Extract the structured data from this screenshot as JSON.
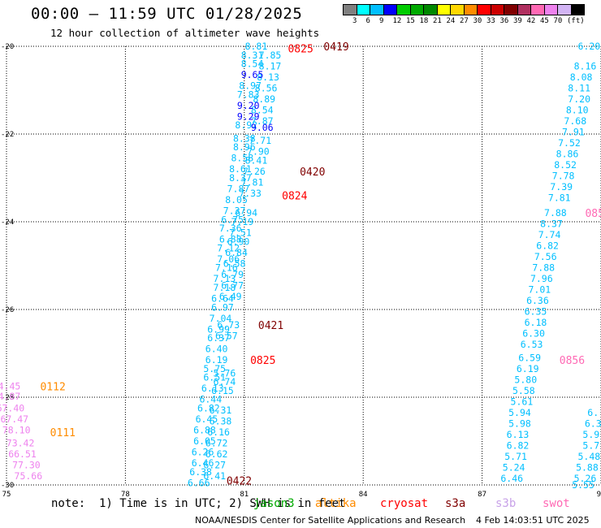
{
  "header": {
    "title": "00:00 – 11:59 UTC 01/28/2025",
    "subtitle": "12 hour collection of altimeter wave heights"
  },
  "colorbar": {
    "colors": [
      "#808080",
      "#00ffff",
      "#00bfff",
      "#0000ff",
      "#00cc00",
      "#00aa00",
      "#008800",
      "#ffff00",
      "#ffd700",
      "#ff8c00",
      "#ff0000",
      "#cc0000",
      "#800000",
      "#b03060",
      "#ff69b4",
      "#ee82ee",
      "#d2b4f4",
      "#000000"
    ],
    "labels": [
      "3",
      "6",
      "9",
      "12",
      "15",
      "18",
      "21",
      "24",
      "27",
      "30",
      "33",
      "36",
      "39",
      "42",
      "45",
      "70",
      "(ft)"
    ]
  },
  "note": "note:  1) Time is in UTC; 2) SWH is in feet",
  "missions": [
    {
      "name": "jason3",
      "color": "#00aa00"
    },
    {
      "name": "altika",
      "color": "#ff8c00"
    },
    {
      "name": "cryosat",
      "color": "#ff0000"
    },
    {
      "name": "s3a",
      "color": "#800000"
    },
    {
      "name": "s3b",
      "color": "#c8a2e8"
    },
    {
      "name": "swot",
      "color": "#ff69b4"
    }
  ],
  "footer": {
    "center": "NOAA/NESDIS Center for Satellite Applications and Research",
    "timestamp": "4 Feb 14:03:51 UTC 2025"
  },
  "chart_data": {
    "type": "scatter",
    "title": "",
    "xlabel": "",
    "ylabel": "",
    "xlim": [
      75,
      90
    ],
    "ylim": [
      -30,
      -20
    ],
    "x_ticks": [
      75,
      78,
      81,
      84,
      87,
      90
    ],
    "y_ticks": [
      -20,
      -22,
      -24,
      -26,
      -28,
      -30
    ],
    "grid": true,
    "track_labels": [
      {
        "text": "0825",
        "x": 82.1,
        "y": -20.05,
        "color": "#ff0000"
      },
      {
        "text": "0419",
        "x": 83.0,
        "y": -20.0,
        "color": "#800000"
      },
      {
        "text": "0420",
        "x": 82.4,
        "y": -22.85,
        "color": "#800000"
      },
      {
        "text": "0824",
        "x": 81.95,
        "y": -23.4,
        "color": "#ff0000"
      },
      {
        "text": "0421",
        "x": 81.35,
        "y": -26.35,
        "color": "#800000"
      },
      {
        "text": "0825",
        "x": 81.15,
        "y": -27.15,
        "color": "#ff0000"
      },
      {
        "text": "0422",
        "x": 80.55,
        "y": -29.9,
        "color": "#800000"
      },
      {
        "text": "0112",
        "x": 75.85,
        "y": -27.75,
        "color": "#ff8c00"
      },
      {
        "text": "0111",
        "x": 76.1,
        "y": -28.8,
        "color": "#ff8c00"
      },
      {
        "text": "0856",
        "x": 88.95,
        "y": -27.15,
        "color": "#ff69b4"
      },
      {
        "text": "085",
        "x": 89.6,
        "y": -23.8,
        "color": "#ff69b4"
      }
    ],
    "series": [
      {
        "color": "#00bfff",
        "points": [
          {
            "x": 81.3,
            "y": -20.0,
            "v": "8.81"
          },
          {
            "x": 81.2,
            "y": -20.2,
            "v": "8.31"
          },
          {
            "x": 81.2,
            "y": -20.4,
            "v": "8.54"
          },
          {
            "x": 81.15,
            "y": -20.9,
            "v": "8.97"
          },
          {
            "x": 81.1,
            "y": -21.1,
            "v": "7.83"
          },
          {
            "x": 81.05,
            "y": -21.8,
            "v": "8.92"
          },
          {
            "x": 81.0,
            "y": -22.1,
            "v": "8.38"
          },
          {
            "x": 81.0,
            "y": -22.3,
            "v": "8.96"
          },
          {
            "x": 80.95,
            "y": -22.55,
            "v": "8.58"
          },
          {
            "x": 80.9,
            "y": -22.8,
            "v": "8.61"
          },
          {
            "x": 80.9,
            "y": -23.0,
            "v": "8.37"
          },
          {
            "x": 80.85,
            "y": -23.25,
            "v": "7.87"
          },
          {
            "x": 80.8,
            "y": -23.5,
            "v": "8.05"
          },
          {
            "x": 80.75,
            "y": -23.75,
            "v": "7.37"
          },
          {
            "x": 80.7,
            "y": -23.95,
            "v": "6.75"
          },
          {
            "x": 80.65,
            "y": -24.15,
            "v": "7.36"
          },
          {
            "x": 80.65,
            "y": -24.4,
            "v": "6.88"
          },
          {
            "x": 80.6,
            "y": -24.6,
            "v": "7.12"
          },
          {
            "x": 80.6,
            "y": -24.85,
            "v": "7.06"
          },
          {
            "x": 80.55,
            "y": -25.05,
            "v": "7.16"
          },
          {
            "x": 80.5,
            "y": -25.3,
            "v": "7.13"
          },
          {
            "x": 80.5,
            "y": -25.5,
            "v": "7.18"
          },
          {
            "x": 80.45,
            "y": -25.75,
            "v": "6.64"
          },
          {
            "x": 80.45,
            "y": -25.95,
            "v": "6.97"
          },
          {
            "x": 80.4,
            "y": -26.2,
            "v": "7.04"
          },
          {
            "x": 80.35,
            "y": -26.45,
            "v": "6.99"
          },
          {
            "x": 80.35,
            "y": -26.65,
            "v": "6.37"
          },
          {
            "x": 80.3,
            "y": -26.9,
            "v": "6.40"
          },
          {
            "x": 80.3,
            "y": -27.15,
            "v": "6.19"
          },
          {
            "x": 80.25,
            "y": -27.35,
            "v": "5.75"
          },
          {
            "x": 80.25,
            "y": -27.55,
            "v": "6.51"
          },
          {
            "x": 80.2,
            "y": -27.8,
            "v": "6.13"
          },
          {
            "x": 80.15,
            "y": -28.05,
            "v": "6.44"
          },
          {
            "x": 80.1,
            "y": -28.25,
            "v": "6.82"
          },
          {
            "x": 80.05,
            "y": -28.5,
            "v": "6.45"
          },
          {
            "x": 80.0,
            "y": -28.75,
            "v": "6.88"
          },
          {
            "x": 80.0,
            "y": -29.0,
            "v": "6.05"
          },
          {
            "x": 79.95,
            "y": -29.25,
            "v": "6.26"
          },
          {
            "x": 79.95,
            "y": -29.5,
            "v": "6.46"
          },
          {
            "x": 79.9,
            "y": -29.7,
            "v": "6.38"
          },
          {
            "x": 79.85,
            "y": -29.95,
            "v": "6.66"
          },
          {
            "x": 81.65,
            "y": -20.2,
            "v": "7.85"
          },
          {
            "x": 81.65,
            "y": -20.45,
            "v": "8.17"
          },
          {
            "x": 81.6,
            "y": -20.7,
            "v": "8.13"
          },
          {
            "x": 81.55,
            "y": -20.95,
            "v": "8.56"
          },
          {
            "x": 81.5,
            "y": -21.2,
            "v": "8.89"
          },
          {
            "x": 81.45,
            "y": -21.45,
            "v": "8.54"
          },
          {
            "x": 81.45,
            "y": -21.7,
            "v": "7.87"
          },
          {
            "x": 81.4,
            "y": -22.15,
            "v": "7.71"
          },
          {
            "x": 81.35,
            "y": -22.4,
            "v": "7.90"
          },
          {
            "x": 81.3,
            "y": -22.6,
            "v": "8.41"
          },
          {
            "x": 81.25,
            "y": -22.85,
            "v": "7.26"
          },
          {
            "x": 81.2,
            "y": -23.1,
            "v": "7.81"
          },
          {
            "x": 81.15,
            "y": -23.35,
            "v": "7.33"
          },
          {
            "x": 81.05,
            "y": -23.8,
            "v": "6.94"
          },
          {
            "x": 80.95,
            "y": -24.0,
            "v": "7.19"
          },
          {
            "x": 80.9,
            "y": -24.25,
            "v": "7.51"
          },
          {
            "x": 80.85,
            "y": -24.45,
            "v": "6.90"
          },
          {
            "x": 80.8,
            "y": -24.7,
            "v": "6.84"
          },
          {
            "x": 80.75,
            "y": -24.95,
            "v": "6.58"
          },
          {
            "x": 80.7,
            "y": -25.2,
            "v": "6.79"
          },
          {
            "x": 80.7,
            "y": -25.45,
            "v": "6.77"
          },
          {
            "x": 80.65,
            "y": -25.7,
            "v": "6.49"
          },
          {
            "x": 80.6,
            "y": -26.35,
            "v": "6.73"
          },
          {
            "x": 80.55,
            "y": -26.6,
            "v": "6.57"
          },
          {
            "x": 80.5,
            "y": -27.45,
            "v": "5.76"
          },
          {
            "x": 80.5,
            "y": -27.65,
            "v": "6.74"
          },
          {
            "x": 80.45,
            "y": -27.85,
            "v": "6.15"
          },
          {
            "x": 80.4,
            "y": -28.3,
            "v": "6.31"
          },
          {
            "x": 80.4,
            "y": -28.55,
            "v": "6.38"
          },
          {
            "x": 80.35,
            "y": -28.8,
            "v": "6.16"
          },
          {
            "x": 80.3,
            "y": -29.05,
            "v": "6.72"
          },
          {
            "x": 80.3,
            "y": -29.3,
            "v": "6.62"
          },
          {
            "x": 80.25,
            "y": -29.55,
            "v": "6.27"
          },
          {
            "x": 80.25,
            "y": -29.8,
            "v": "6.41"
          },
          {
            "x": 89.7,
            "y": -20.0,
            "v": "6.20"
          },
          {
            "x": 89.6,
            "y": -20.45,
            "v": "8.16"
          },
          {
            "x": 89.5,
            "y": -20.7,
            "v": "8.08"
          },
          {
            "x": 89.45,
            "y": -20.95,
            "v": "8.11"
          },
          {
            "x": 89.45,
            "y": -21.2,
            "v": "7.20"
          },
          {
            "x": 89.4,
            "y": -21.45,
            "v": "8.10"
          },
          {
            "x": 89.35,
            "y": -21.7,
            "v": "7.68"
          },
          {
            "x": 89.3,
            "y": -21.95,
            "v": "7.91"
          },
          {
            "x": 89.2,
            "y": -22.2,
            "v": "7.52"
          },
          {
            "x": 89.15,
            "y": -22.45,
            "v": "8.86"
          },
          {
            "x": 89.1,
            "y": -22.7,
            "v": "8.52"
          },
          {
            "x": 89.05,
            "y": -22.95,
            "v": "7.78"
          },
          {
            "x": 89.0,
            "y": -23.2,
            "v": "7.39"
          },
          {
            "x": 88.95,
            "y": -23.45,
            "v": "7.81"
          },
          {
            "x": 88.85,
            "y": -23.8,
            "v": "7.88"
          },
          {
            "x": 88.75,
            "y": -24.05,
            "v": "8.37"
          },
          {
            "x": 88.7,
            "y": -24.3,
            "v": "7.74"
          },
          {
            "x": 88.65,
            "y": -24.55,
            "v": "6.82"
          },
          {
            "x": 88.6,
            "y": -24.8,
            "v": "7.56"
          },
          {
            "x": 88.55,
            "y": -25.05,
            "v": "7.88"
          },
          {
            "x": 88.5,
            "y": -25.3,
            "v": "7.96"
          },
          {
            "x": 88.45,
            "y": -25.55,
            "v": "7.01"
          },
          {
            "x": 88.4,
            "y": -25.8,
            "v": "6.36"
          },
          {
            "x": 88.35,
            "y": -26.05,
            "v": "6.35"
          },
          {
            "x": 88.35,
            "y": -26.3,
            "v": "6.18"
          },
          {
            "x": 88.3,
            "y": -26.55,
            "v": "6.30"
          },
          {
            "x": 88.25,
            "y": -26.8,
            "v": "6.53"
          },
          {
            "x": 88.2,
            "y": -27.1,
            "v": "6.59"
          },
          {
            "x": 88.15,
            "y": -27.35,
            "v": "6.19"
          },
          {
            "x": 88.1,
            "y": -27.6,
            "v": "5.80"
          },
          {
            "x": 88.05,
            "y": -27.85,
            "v": "5.58"
          },
          {
            "x": 88.0,
            "y": -28.1,
            "v": "5.61"
          },
          {
            "x": 87.95,
            "y": -28.35,
            "v": "5.94"
          },
          {
            "x": 87.95,
            "y": -28.6,
            "v": "5.98"
          },
          {
            "x": 87.9,
            "y": -28.85,
            "v": "6.13"
          },
          {
            "x": 87.9,
            "y": -29.1,
            "v": "6.82"
          },
          {
            "x": 87.85,
            "y": -29.35,
            "v": "5.71"
          },
          {
            "x": 87.8,
            "y": -29.6,
            "v": "5.24"
          },
          {
            "x": 87.75,
            "y": -29.85,
            "v": "6.46"
          },
          {
            "x": 89.8,
            "y": -28.35,
            "v": "6."
          },
          {
            "x": 89.8,
            "y": -28.6,
            "v": "6.3"
          },
          {
            "x": 89.75,
            "y": -28.85,
            "v": "5.9"
          },
          {
            "x": 89.75,
            "y": -29.1,
            "v": "5.7"
          },
          {
            "x": 89.7,
            "y": -29.35,
            "v": "5.48"
          },
          {
            "x": 89.65,
            "y": -29.6,
            "v": "5.88"
          },
          {
            "x": 89.6,
            "y": -29.85,
            "v": "5.26"
          },
          {
            "x": 89.55,
            "y": -30.0,
            "v": "5.55"
          }
        ]
      },
      {
        "color": "#0000ff",
        "points": [
          {
            "x": 81.2,
            "y": -20.65,
            "v": "9.65"
          },
          {
            "x": 81.1,
            "y": -21.35,
            "v": "9.20"
          },
          {
            "x": 81.1,
            "y": -21.6,
            "v": "9.29"
          },
          {
            "x": 81.45,
            "y": -21.85,
            "v": "9.06"
          }
        ]
      },
      {
        "color": "#ee82ee",
        "points": [
          {
            "x": 75.0,
            "y": -27.75,
            "v": "74.45"
          },
          {
            "x": 75.0,
            "y": -27.98,
            "v": "84.87"
          },
          {
            "x": 75.1,
            "y": -28.25,
            "v": "67.40"
          },
          {
            "x": 75.2,
            "y": -28.5,
            "v": "67.47"
          },
          {
            "x": 75.25,
            "y": -28.75,
            "v": "78.10"
          },
          {
            "x": 75.35,
            "y": -29.05,
            "v": "73.42"
          },
          {
            "x": 75.4,
            "y": -29.3,
            "v": "66.51"
          },
          {
            "x": 75.5,
            "y": -29.55,
            "v": "77.30"
          },
          {
            "x": 75.55,
            "y": -29.8,
            "v": "75.66"
          }
        ]
      }
    ]
  }
}
